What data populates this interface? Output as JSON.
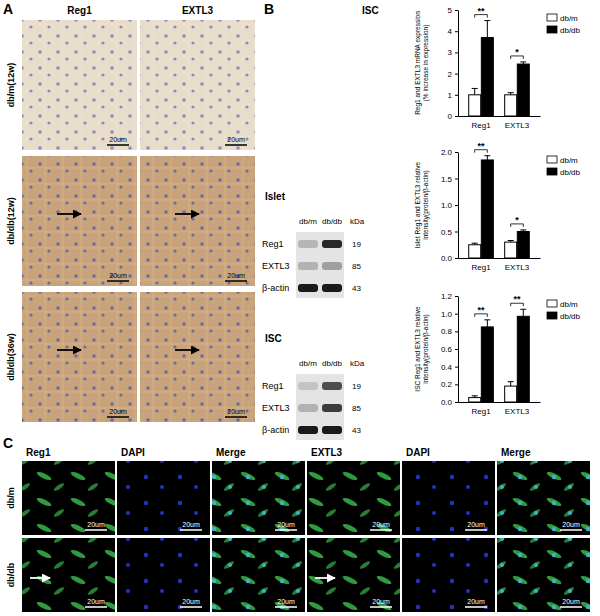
{
  "panel_a": {
    "label": "A",
    "columns": [
      "Reg1",
      "EXTL3"
    ],
    "rows": [
      "db/m(12w)",
      "db/db(12w)",
      "db/db(36w)"
    ],
    "scale_bar": "20um"
  },
  "panel_b": {
    "label": "B",
    "title": "ISC",
    "blots": [
      {
        "title": "Islet",
        "lanes": [
          "db/m",
          "db/db"
        ],
        "unit": "kDa",
        "bands": [
          {
            "name": "Reg1",
            "kda": 19
          },
          {
            "name": "EXTL3",
            "kda": 85
          },
          {
            "name": "β-actin",
            "kda": 43
          }
        ]
      },
      {
        "title": "ISC",
        "lanes": [
          "db/m",
          "db/db"
        ],
        "unit": "kDa",
        "bands": [
          {
            "name": "Reg1",
            "kda": 19
          },
          {
            "name": "EXTL3",
            "kda": 85
          },
          {
            "name": "β-actin",
            "kda": 43
          }
        ]
      }
    ]
  },
  "chart_data": [
    {
      "type": "bar",
      "ylabel": [
        "Reg1 and EXTL3 mRNA expression",
        "(% increase in expression)"
      ],
      "categories": [
        "Reg1",
        "EXTL3"
      ],
      "series": [
        {
          "name": "db/m",
          "color": "#ffffff",
          "values": [
            1.0,
            1.0
          ],
          "errors": [
            0.3,
            0.1
          ]
        },
        {
          "name": "db/db",
          "color": "#000000",
          "values": [
            3.7,
            2.45
          ],
          "errors": [
            0.8,
            0.1
          ]
        }
      ],
      "ylim": [
        0,
        5
      ],
      "yticks": [
        0,
        1,
        2,
        3,
        4,
        5
      ],
      "significance": [
        "**",
        "*"
      ],
      "legend": "upper right"
    },
    {
      "type": "bar",
      "ylabel": [
        "Islet Reg1 and EXTL3 relative",
        "intensity(protein/β-actin)"
      ],
      "categories": [
        "Reg1",
        "EXTL3"
      ],
      "series": [
        {
          "name": "db/m",
          "color": "#ffffff",
          "values": [
            0.25,
            0.3
          ],
          "errors": [
            0.03,
            0.03
          ]
        },
        {
          "name": "db/db",
          "color": "#000000",
          "values": [
            1.85,
            0.5
          ],
          "errors": [
            0.08,
            0.03
          ]
        }
      ],
      "ylim": [
        0,
        2
      ],
      "yticks": [
        {
          "value": 0,
          "label": "0.0"
        },
        {
          "value": 0.5,
          "label": "0.5"
        },
        {
          "value": 1,
          "label": "1.0"
        },
        {
          "value": 1.5,
          "label": "1.5"
        },
        {
          "value": 2,
          "label": "2.0"
        }
      ],
      "significance": [
        "**",
        "*"
      ],
      "legend": "upper right"
    },
    {
      "type": "bar",
      "ylabel": [
        "ISC Reg1 and EXTL3 relative",
        "intensity(protein/β-actin)"
      ],
      "categories": [
        "Reg1",
        "EXTL3"
      ],
      "series": [
        {
          "name": "db/m",
          "color": "#ffffff",
          "values": [
            0.05,
            0.18
          ],
          "errors": [
            0.02,
            0.05
          ]
        },
        {
          "name": "db/db",
          "color": "#000000",
          "values": [
            0.85,
            0.97
          ],
          "errors": [
            0.08,
            0.08
          ]
        }
      ],
      "ylim": [
        0,
        1.2
      ],
      "yticks": [
        {
          "value": 0,
          "label": "0.0"
        },
        {
          "value": 0.2,
          "label": "0.2"
        },
        {
          "value": 0.4,
          "label": "0.4"
        },
        {
          "value": 0.6,
          "label": "0.6"
        },
        {
          "value": 0.8,
          "label": "0.8"
        },
        {
          "value": 1,
          "label": "1.0"
        },
        {
          "value": 1.2,
          "label": "1.2"
        }
      ],
      "significance": [
        "**",
        "**"
      ],
      "legend": "upper right"
    }
  ],
  "panel_c": {
    "label": "C",
    "columns": [
      "Reg1",
      "DAPI",
      "Merge",
      "EXTL3",
      "DAPI",
      "Merge"
    ],
    "rows": [
      "db/m",
      "db/db"
    ],
    "scale_bar": "20um"
  }
}
